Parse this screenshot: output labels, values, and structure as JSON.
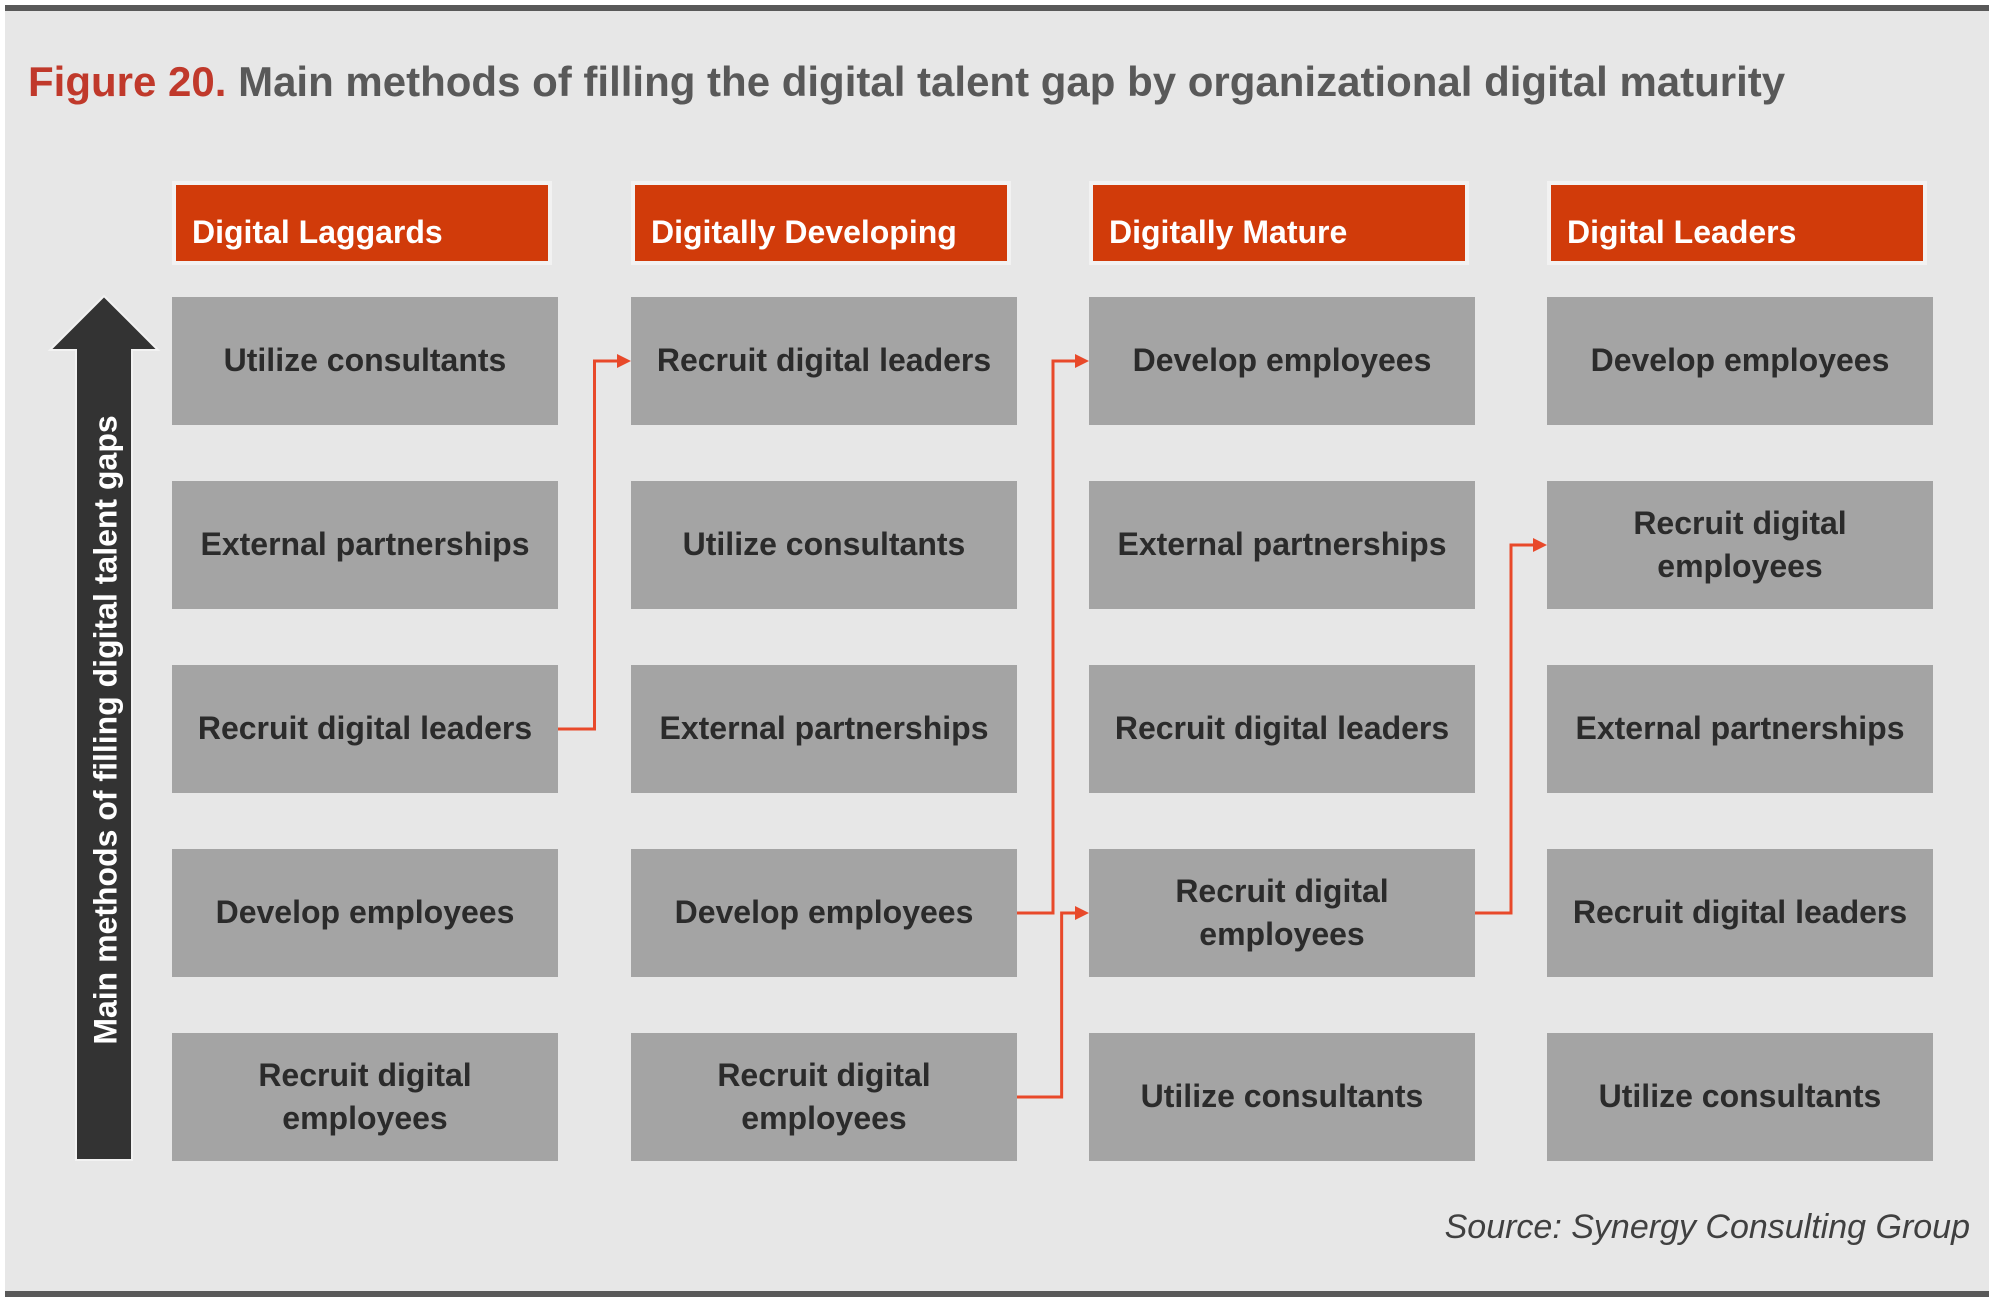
{
  "title": {
    "prefix": "Figure 20.",
    "text": "Main methods of filling the digital talent gap by organizational digital maturity"
  },
  "axis_label": "Main methods of filling digital talent gaps",
  "columns": [
    {
      "header": "Digital Laggards",
      "items": [
        "Utilize consultants",
        "External partnerships",
        "Recruit digital leaders",
        "Develop employees",
        "Recruit digital employees"
      ]
    },
    {
      "header": "Digitally Developing",
      "items": [
        "Recruit digital leaders",
        "Utilize consultants",
        "External partnerships",
        "Develop employees",
        "Recruit digital employees"
      ]
    },
    {
      "header": "Digitally Mature",
      "items": [
        "Develop employees",
        "External partnerships",
        "Recruit digital leaders",
        "Recruit digital employees",
        "Utilize consultants"
      ]
    },
    {
      "header": "Digital Leaders",
      "items": [
        "Develop employees",
        "Recruit digital employees",
        "External partnerships",
        "Recruit digital leaders",
        "Utilize consultants"
      ]
    }
  ],
  "connections": [
    {
      "from_column": 0,
      "from_row": 2,
      "to_column": 1,
      "to_row": 0
    },
    {
      "from_column": 1,
      "from_row": 3,
      "to_column": 2,
      "to_row": 0
    },
    {
      "from_column": 1,
      "from_row": 4,
      "to_column": 2,
      "to_row": 3
    },
    {
      "from_column": 2,
      "from_row": 3,
      "to_column": 3,
      "to_row": 1
    }
  ],
  "source": "Source: Synergy Consulting Group",
  "colors": {
    "header": "#d13b0a",
    "box": "#a4a4a4",
    "connector": "#e8492a",
    "arrow": "#333333",
    "title_prefix": "#c0392b"
  }
}
